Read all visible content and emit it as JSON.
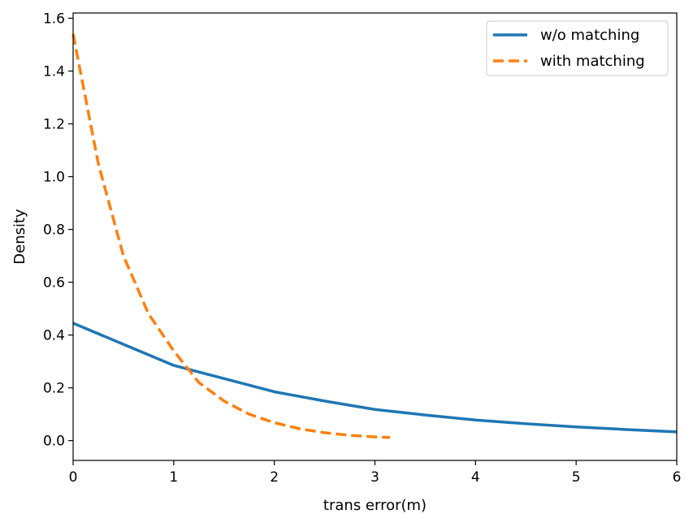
{
  "chart_data": {
    "type": "line",
    "title": "",
    "xlabel": "trans error(m)",
    "ylabel": "Density",
    "xlim": [
      0,
      6
    ],
    "ylim": [
      -0.075,
      1.62
    ],
    "xticks": [
      0,
      1,
      2,
      3,
      4,
      5,
      6
    ],
    "yticks": [
      0.0,
      0.2,
      0.4,
      0.6,
      0.8,
      1.0,
      1.2,
      1.4,
      1.6
    ],
    "xtick_labels": [
      "0",
      "1",
      "2",
      "3",
      "4",
      "5",
      "6"
    ],
    "ytick_labels": [
      "0.0",
      "0.2",
      "0.4",
      "0.6",
      "0.8",
      "1.0",
      "1.2",
      "1.4",
      "1.6"
    ],
    "grid": false,
    "legend_position": "top-right",
    "series": [
      {
        "name": "w/o matching",
        "color": "#1f77b4",
        "dash": "solid",
        "x": [
          0,
          0.5,
          1.0,
          1.5,
          2.0,
          2.5,
          3.0,
          3.5,
          4.0,
          4.5,
          5.0,
          5.5,
          6.0
        ],
        "y": [
          0.445,
          0.365,
          0.285,
          0.235,
          0.185,
          0.15,
          0.118,
          0.097,
          0.078,
          0.064,
          0.052,
          0.042,
          0.033
        ]
      },
      {
        "name": "with matching",
        "color": "#ff7f0e",
        "dash": "dashed",
        "x": [
          0,
          0.25,
          0.5,
          0.75,
          1.0,
          1.25,
          1.5,
          1.75,
          2.0,
          2.25,
          2.5,
          2.75,
          3.0,
          3.15
        ],
        "y": [
          1.54,
          1.05,
          0.7,
          0.48,
          0.34,
          0.22,
          0.15,
          0.1,
          0.068,
          0.045,
          0.03,
          0.02,
          0.014,
          0.012
        ]
      }
    ]
  }
}
